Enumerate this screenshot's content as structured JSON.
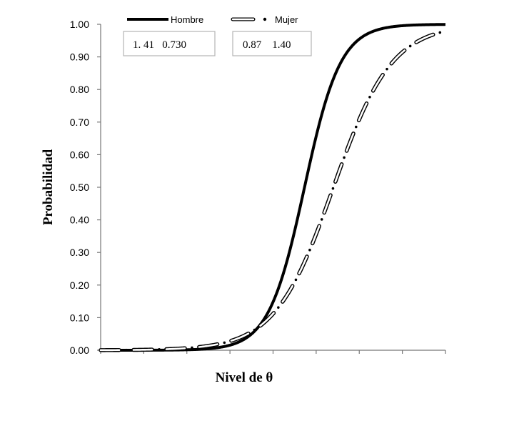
{
  "chart_data": {
    "type": "line",
    "xlabel": "Nivel de θ",
    "ylabel": "Probabilidad",
    "ylim": [
      0,
      1
    ],
    "yticks": [
      "0.00",
      "0.10",
      "0.20",
      "0.30",
      "0.40",
      "0.50",
      "0.60",
      "0.70",
      "0.80",
      "0.90",
      "1.00"
    ],
    "xlim": [
      -4,
      4
    ],
    "x_ticks_labeled": false,
    "grid": false,
    "legend_position": "top",
    "series": [
      {
        "name": "Hombre",
        "style": "solid",
        "a": 1.41,
        "b": 0.73,
        "color": "#000000"
      },
      {
        "name": "Mujer",
        "style": "dash-dot",
        "a": 0.87,
        "b": 1.4,
        "color": "#000000"
      }
    ],
    "parameter_boxes": [
      {
        "series": "Hombre",
        "text": "1. 41   0.730"
      },
      {
        "series": "Mujer",
        "text": "0.87    1.40"
      }
    ]
  }
}
